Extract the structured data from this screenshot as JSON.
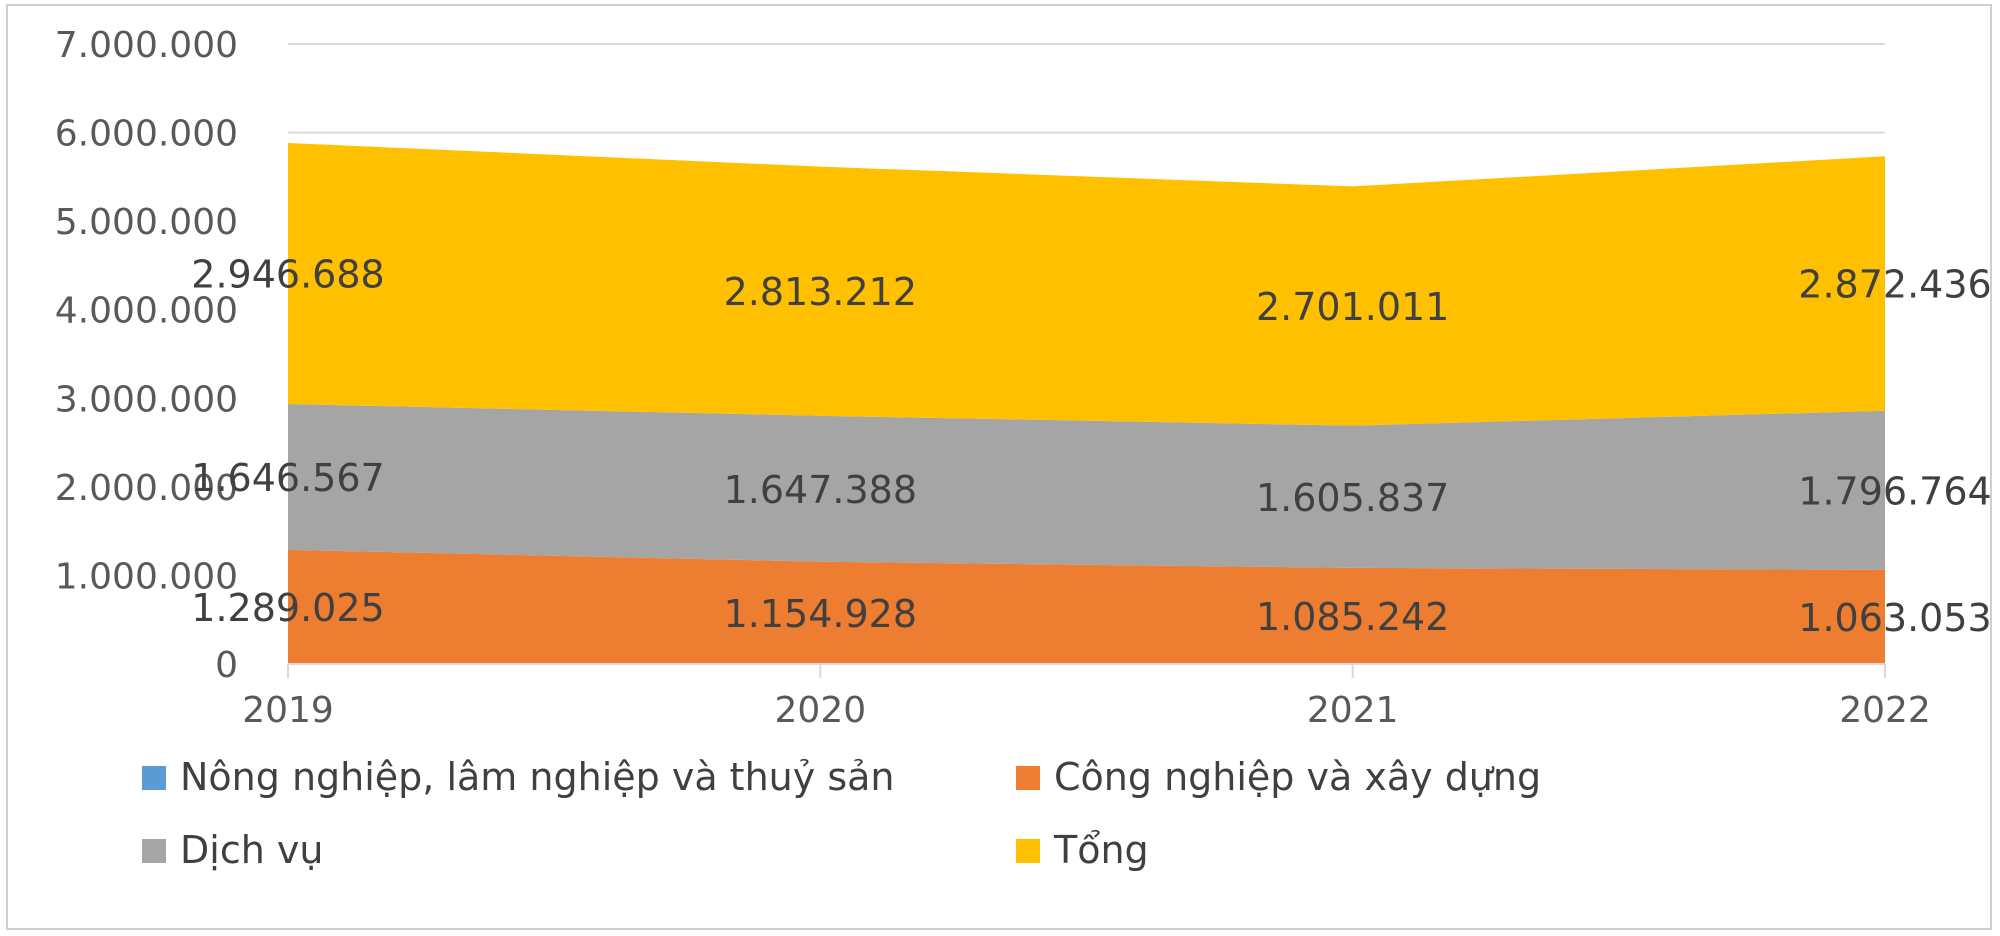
{
  "chart_data": {
    "type": "area",
    "stacked": true,
    "categories": [
      "2019",
      "2020",
      "2021",
      "2022"
    ],
    "series": [
      {
        "name": "Nông nghiệp, lâm nghiệp và thuỷ sản",
        "color": "#5B9BD5",
        "values": [
          0,
          0,
          0,
          0
        ]
      },
      {
        "name": "Công nghiệp và xây dựng",
        "color": "#ED7D31",
        "values": [
          1289025,
          1154928,
          1085242,
          1063053
        ],
        "labels": [
          "1.289.025",
          "1.154.928",
          "1.085.242",
          "1.063.053"
        ]
      },
      {
        "name": "Dịch vụ",
        "color": "#A5A5A5",
        "values": [
          1646567,
          1647388,
          1605837,
          1796764
        ],
        "labels": [
          "1.646.567",
          "1.647.388",
          "1.605.837",
          "1.796.764"
        ]
      },
      {
        "name": "Tổng",
        "color": "#FFC000",
        "values": [
          2946688,
          2813212,
          2701011,
          2872436
        ],
        "labels": [
          "2.946.688",
          "2.813.212",
          "2.701.011",
          "2.872.436"
        ]
      }
    ],
    "ylim": [
      0,
      7000000
    ],
    "y_ticks": [
      {
        "value": 0,
        "label": "0"
      },
      {
        "value": 1000000,
        "label": "1.000.000"
      },
      {
        "value": 2000000,
        "label": "2.000.000"
      },
      {
        "value": 3000000,
        "label": "3.000.000"
      },
      {
        "value": 4000000,
        "label": "4.000.000"
      },
      {
        "value": 5000000,
        "label": "5.000.000"
      },
      {
        "value": 6000000,
        "label": "6.000.000"
      },
      {
        "value": 7000000,
        "label": "7.000.000"
      }
    ],
    "grid": true,
    "legend_position": "bottom",
    "title": "",
    "xlabel": "",
    "ylabel": ""
  }
}
